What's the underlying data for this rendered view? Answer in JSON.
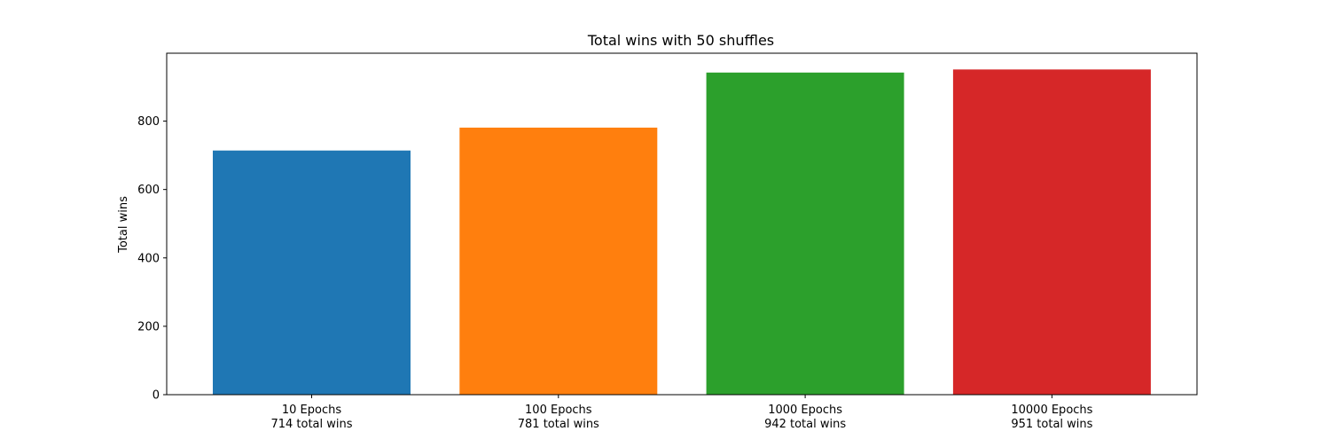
{
  "chart_data": {
    "type": "bar",
    "title": "Total wins with 50 shuffles",
    "xlabel": "",
    "ylabel": "Total wins",
    "categories": [
      "10 Epochs",
      "100 Epochs",
      "1000 Epochs",
      "10000 Epochs"
    ],
    "bar_labels": [
      "714 total wins",
      "781 total wins",
      "942 total wins",
      "951 total wins"
    ],
    "values": [
      714,
      781,
      942,
      951
    ],
    "colors": [
      "#1f77b4",
      "#ff7f0e",
      "#2ca02c",
      "#d62728"
    ],
    "ylim": [
      0,
      998.55
    ],
    "yticks": [
      0,
      200,
      400,
      600,
      800
    ],
    "grid": false,
    "legend": "none"
  }
}
